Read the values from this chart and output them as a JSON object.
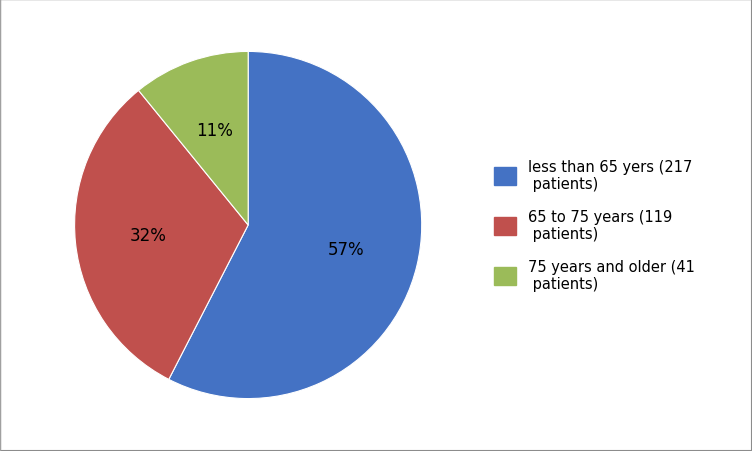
{
  "slices": [
    217,
    119,
    41
  ],
  "percentages": [
    "57%",
    "32%",
    "11%"
  ],
  "colors": [
    "#4472C4",
    "#C0504D",
    "#9BBB59"
  ],
  "labels": [
    "less than 65 yers (217\n patients)",
    "65 to 75 years (119\n patients)",
    "75 years and older (41\n patients)"
  ],
  "startangle": 90,
  "background_color": "#FFFFFF",
  "legend_fontsize": 10.5,
  "pct_fontsize": 12,
  "figsize": [
    7.52,
    4.52
  ],
  "dpi": 100,
  "border_color": "#A0A0A0"
}
